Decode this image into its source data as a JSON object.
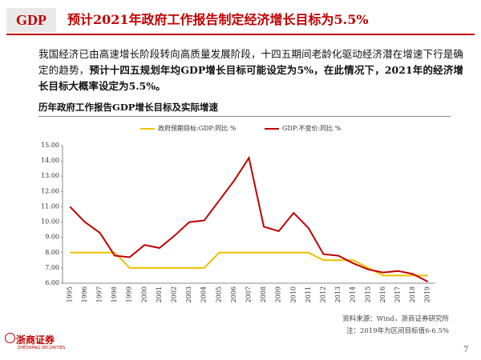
{
  "header": {
    "badge": "GDP",
    "title": "预计2021年政府工作报告制定经济增长目标为5.5%"
  },
  "paragraph": {
    "normal": "我国经济已由高速增长阶段转向高质量发展阶段，十四五期间老龄化驱动经济潜在增速下行是确定的趋势，",
    "bold": "预计十四五规划年均GDP增长目标可能设定为5%，在此情况下，2021年的经济增长目标大概率设定为5.5%。"
  },
  "chart_data": {
    "type": "line",
    "title": "历年政府工作报告GDP增长目标及实际增速",
    "categories": [
      "1995",
      "1996",
      "1997",
      "1998",
      "1999",
      "2000",
      "2001",
      "2002",
      "2003",
      "2004",
      "2005",
      "2006",
      "2007",
      "2008",
      "2009",
      "2010",
      "2011",
      "2012",
      "2013",
      "2014",
      "2015",
      "2016",
      "2017",
      "2018",
      "2019"
    ],
    "series": [
      {
        "name": "政府预期目标:GDP:同比 %",
        "color": "#f0c000",
        "values": [
          8,
          8,
          8,
          8,
          7,
          7,
          7,
          7,
          7,
          7,
          8,
          8,
          8,
          8,
          8,
          8,
          8,
          7.5,
          7.5,
          7.5,
          7,
          6.5,
          6.5,
          6.5,
          6.5
        ]
      },
      {
        "name": "GDP:不变价:同比 %",
        "color": "#c00000",
        "values": [
          11,
          10,
          9.3,
          7.8,
          7.7,
          8.5,
          8.3,
          9.1,
          10,
          10.1,
          11.4,
          12.7,
          14.2,
          9.7,
          9.4,
          10.6,
          9.6,
          7.9,
          7.8,
          7.3,
          6.9,
          6.7,
          6.8,
          6.6,
          6.1
        ]
      }
    ],
    "ylim": [
      6,
      15
    ],
    "yticks": [
      {
        "value": 6,
        "label": "6.00"
      },
      {
        "value": 7,
        "label": "7.00"
      },
      {
        "value": 8,
        "label": "8.00"
      },
      {
        "value": 9,
        "label": "9.00"
      },
      {
        "value": 10,
        "label": "10.00"
      },
      {
        "value": 11,
        "label": "11.00"
      },
      {
        "value": 12,
        "label": "12.00"
      },
      {
        "value": 13,
        "label": "13.00"
      },
      {
        "value": 14,
        "label": "14.00"
      },
      {
        "value": 15,
        "label": "15.00"
      }
    ],
    "legend": "top"
  },
  "source": [
    "资料来源：Wind，浙商证券研究所",
    "注：2019年为区间目标值6-6.5%"
  ],
  "footer": {
    "logo": "浙商证券",
    "logo_sub": "ZHESHANG SECURITIES",
    "page": "7"
  }
}
